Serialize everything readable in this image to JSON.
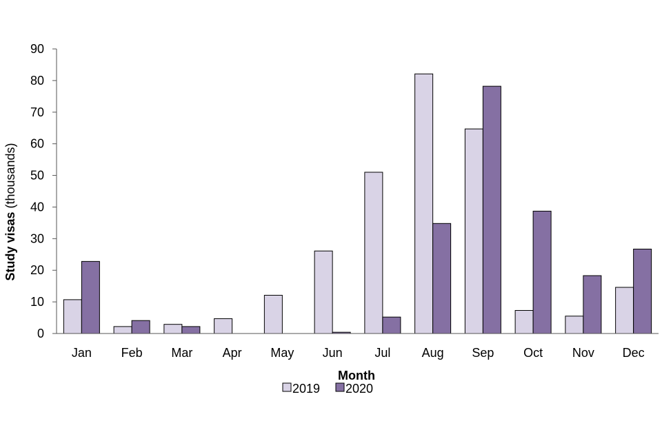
{
  "chart_data": {
    "type": "bar",
    "categories": [
      "Jan",
      "Feb",
      "Mar",
      "Apr",
      "May",
      "Jun",
      "Jul",
      "Aug",
      "Sep",
      "Oct",
      "Nov",
      "Dec"
    ],
    "series": [
      {
        "name": "2019",
        "color": "#d9d3e6",
        "values": [
          10.7,
          2.2,
          2.9,
          4.7,
          12.1,
          26.1,
          51.0,
          82.1,
          64.7,
          7.3,
          5.5,
          14.6
        ]
      },
      {
        "name": "2020",
        "color": "#8570a3",
        "values": [
          22.8,
          4.1,
          2.2,
          0,
          0,
          0.4,
          5.2,
          34.8,
          78.2,
          38.7,
          18.3,
          26.7
        ]
      }
    ],
    "xlabel": "Month",
    "ylabel_bold": "Study visas",
    "ylabel_rest": " (thousands)",
    "ylim": [
      0,
      90
    ],
    "yticks": [
      0,
      10,
      20,
      30,
      40,
      50,
      60,
      70,
      80,
      90
    ],
    "grid": false,
    "legend_position": "bottom-center"
  }
}
